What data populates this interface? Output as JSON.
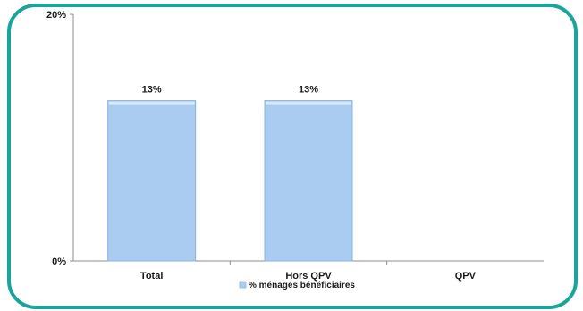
{
  "chart_data": {
    "type": "bar",
    "categories": [
      "Total",
      "Hors QPV",
      "QPV"
    ],
    "series": [
      {
        "name": "% ménages bénéficiaires",
        "values": [
          13,
          13,
          null
        ],
        "data_labels": [
          "13%",
          "13%",
          ""
        ]
      }
    ],
    "y_ticks": [
      {
        "value": 0,
        "label": "0%"
      },
      {
        "value": 20,
        "label": "20%"
      }
    ],
    "ylim": [
      0,
      20
    ],
    "grid": false,
    "legend_position": "bottom",
    "colors": {
      "bar_fill": "#a9ccf0",
      "bar_top": "#dbeafb",
      "bar_stroke": "#86b3e0",
      "frame": "#1aa59c",
      "axis": "#8c8c8c"
    }
  }
}
